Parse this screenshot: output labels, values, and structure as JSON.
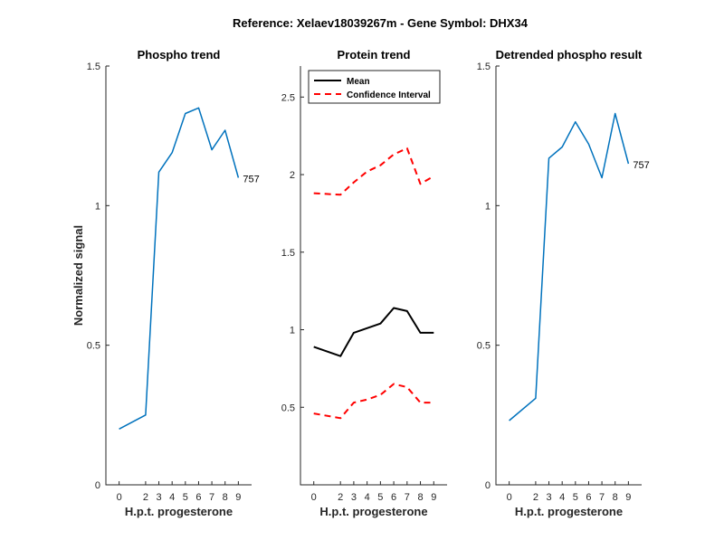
{
  "figure_title": "Reference:  Xelaev18039267m - Gene Symbol:  DHX34",
  "chart_data": [
    {
      "type": "line",
      "title": "Phospho trend",
      "xlabel": "H.p.t. progesterone",
      "ylabel": "Normalized signal",
      "x": [
        0,
        2,
        3,
        4,
        5,
        6,
        7,
        8,
        9
      ],
      "xtick_labels": [
        "0",
        "2",
        "3",
        "4",
        "5",
        "6",
        "7",
        "8",
        "9"
      ],
      "ylim": [
        0,
        1.5
      ],
      "yticks": [
        0,
        0.5,
        1,
        1.5
      ],
      "ytick_labels": [
        "0",
        "0.5",
        "1",
        "1.5"
      ],
      "series": [
        {
          "values": [
            0.2,
            0.25,
            1.12,
            1.19,
            1.33,
            1.35,
            1.2,
            1.27,
            1.1
          ],
          "color": "#0072BD",
          "style": "solid"
        }
      ],
      "end_label": "757"
    },
    {
      "type": "line",
      "title": "Protein trend",
      "xlabel": "H.p.t. progesterone",
      "ylabel": "",
      "x": [
        0,
        2,
        3,
        4,
        5,
        6,
        7,
        8,
        9
      ],
      "xtick_labels": [
        "0",
        "2",
        "3",
        "4",
        "5",
        "6",
        "7",
        "8",
        "9"
      ],
      "ylim": [
        0,
        2.7
      ],
      "yticks": [
        0.5,
        1,
        1.5,
        2,
        2.5
      ],
      "ytick_labels": [
        "0.5",
        "1",
        "1.5",
        "2",
        "2.5"
      ],
      "legend": "top-left",
      "series": [
        {
          "name": "Mean",
          "values": [
            0.89,
            0.83,
            0.98,
            1.01,
            1.04,
            1.14,
            1.12,
            0.98,
            0.98
          ],
          "color": "#000000",
          "style": "solid"
        },
        {
          "name": "Confidence Interval",
          "values": [
            1.88,
            1.87,
            1.95,
            2.02,
            2.06,
            2.13,
            2.17,
            1.94,
            1.99
          ],
          "color": "#FF0000",
          "style": "dashed"
        },
        {
          "values": [
            0.46,
            0.43,
            0.53,
            0.55,
            0.58,
            0.65,
            0.63,
            0.53,
            0.53
          ],
          "color": "#FF0000",
          "style": "dashed"
        }
      ]
    },
    {
      "type": "line",
      "title": "Detrended phospho result",
      "xlabel": "H.p.t. progesterone",
      "ylabel": "",
      "x": [
        0,
        2,
        3,
        4,
        5,
        6,
        7,
        8,
        9
      ],
      "xtick_labels": [
        "0",
        "2",
        "3",
        "4",
        "5",
        "6",
        "7",
        "8",
        "9"
      ],
      "ylim": [
        0,
        1.5
      ],
      "yticks": [
        0,
        0.5,
        1,
        1.5
      ],
      "ytick_labels": [
        "0",
        "0.5",
        "1",
        "1.5"
      ],
      "series": [
        {
          "values": [
            0.23,
            0.31,
            1.17,
            1.21,
            1.3,
            1.22,
            1.1,
            1.33,
            1.15
          ],
          "color": "#0072BD",
          "style": "solid"
        }
      ],
      "end_label": "757"
    }
  ]
}
